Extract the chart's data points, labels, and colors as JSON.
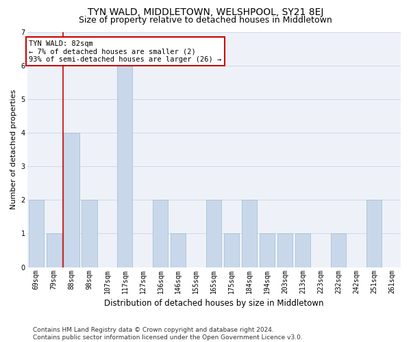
{
  "title": "TYN WALD, MIDDLETOWN, WELSHPOOL, SY21 8EJ",
  "subtitle": "Size of property relative to detached houses in Middletown",
  "xlabel": "Distribution of detached houses by size in Middletown",
  "ylabel": "Number of detached properties",
  "categories": [
    "69sqm",
    "79sqm",
    "88sqm",
    "98sqm",
    "107sqm",
    "117sqm",
    "127sqm",
    "136sqm",
    "146sqm",
    "155sqm",
    "165sqm",
    "175sqm",
    "184sqm",
    "194sqm",
    "203sqm",
    "213sqm",
    "223sqm",
    "232sqm",
    "242sqm",
    "251sqm",
    "261sqm"
  ],
  "values": [
    2,
    1,
    4,
    2,
    0,
    6,
    0,
    2,
    1,
    0,
    2,
    1,
    2,
    1,
    1,
    1,
    0,
    1,
    0,
    2,
    0
  ],
  "bar_color": "#c8d8ea",
  "bar_edgecolor": "#a8c0d8",
  "subject_line_color": "#cc0000",
  "annotation_box_text": "TYN WALD: 82sqm\n← 7% of detached houses are smaller (2)\n93% of semi-detached houses are larger (26) →",
  "annotation_box_color": "#cc0000",
  "annotation_box_facecolor": "white",
  "ylim": [
    0,
    7
  ],
  "yticks": [
    0,
    1,
    2,
    3,
    4,
    5,
    6,
    7
  ],
  "grid_color": "#d0d8e8",
  "bg_color": "#eef2f8",
  "footer": "Contains HM Land Registry data © Crown copyright and database right 2024.\nContains public sector information licensed under the Open Government Licence v3.0.",
  "title_fontsize": 10,
  "subtitle_fontsize": 9,
  "xlabel_fontsize": 8.5,
  "ylabel_fontsize": 8,
  "tick_fontsize": 7,
  "footer_fontsize": 6.5,
  "ann_fontsize": 7.5
}
